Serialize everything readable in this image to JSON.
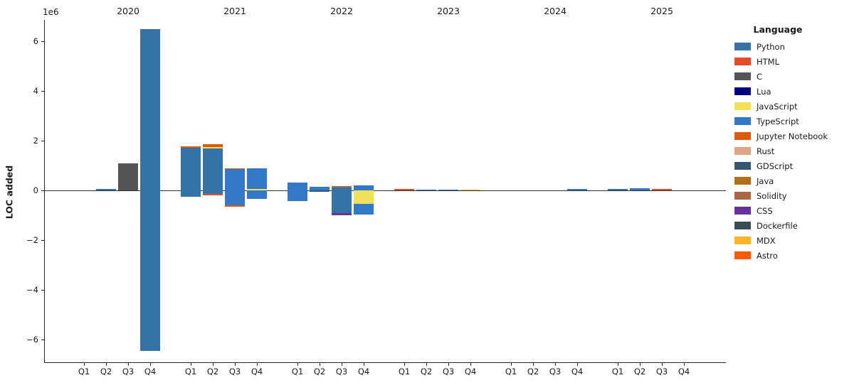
{
  "figure": {
    "ylabel": "LOC added",
    "scale_offset_label": "1e6",
    "legend_title": "Language"
  },
  "languages": [
    {
      "name": "Python",
      "color": "#3572A5"
    },
    {
      "name": "HTML",
      "color": "#e34c26"
    },
    {
      "name": "C",
      "color": "#555555"
    },
    {
      "name": "Lua",
      "color": "#000080"
    },
    {
      "name": "JavaScript",
      "color": "#f1e05a"
    },
    {
      "name": "TypeScript",
      "color": "#3178c6"
    },
    {
      "name": "Jupyter Notebook",
      "color": "#DA5B0B"
    },
    {
      "name": "Rust",
      "color": "#dea584"
    },
    {
      "name": "GDScript",
      "color": "#355570"
    },
    {
      "name": "Java",
      "color": "#b07219"
    },
    {
      "name": "Solidity",
      "color": "#AA6746"
    },
    {
      "name": "CSS",
      "color": "#663399"
    },
    {
      "name": "Dockerfile",
      "color": "#384d54"
    },
    {
      "name": "MDX",
      "color": "#fcb32c"
    },
    {
      "name": "Astro",
      "color": "#ff5a03"
    }
  ],
  "chart_data": {
    "type": "bar",
    "stacked": true,
    "title": "",
    "xlabel": "",
    "ylabel": "LOC added",
    "y_unit_offset": "1e6",
    "ylim": [
      -6900000,
      6900000
    ],
    "grid": false,
    "legend_position": "right",
    "years": [
      "2020",
      "2021",
      "2022",
      "2023",
      "2024",
      "2025"
    ],
    "quarter_labels": [
      "Q1",
      "Q2",
      "Q3",
      "Q4"
    ],
    "yticks": [
      {
        "value": 6000000,
        "label": "6"
      },
      {
        "value": 4000000,
        "label": "4"
      },
      {
        "value": 2000000,
        "label": "2"
      },
      {
        "value": 0,
        "label": "0"
      },
      {
        "value": -2000000,
        "label": "−2"
      },
      {
        "value": -4000000,
        "label": "−4"
      },
      {
        "value": -6000000,
        "label": "−6"
      }
    ],
    "bars": [
      {
        "year": "2020",
        "quarter": "Q2",
        "segments": [
          {
            "language": "Python",
            "loc": 50000
          }
        ]
      },
      {
        "year": "2020",
        "quarter": "Q3",
        "segments": [
          {
            "language": "C",
            "loc": 1090000
          }
        ]
      },
      {
        "year": "2020",
        "quarter": "Q4",
        "segments": [
          {
            "language": "Python",
            "loc": 6500000
          },
          {
            "language": "Python",
            "loc": -6450000
          }
        ]
      },
      {
        "year": "2021",
        "quarter": "Q1",
        "segments": [
          {
            "language": "Python",
            "loc": 1720000
          },
          {
            "language": "Jupyter Notebook",
            "loc": 50000
          },
          {
            "language": "Python",
            "loc": -260000
          }
        ]
      },
      {
        "year": "2021",
        "quarter": "Q2",
        "segments": [
          {
            "language": "Python",
            "loc": 1680000
          },
          {
            "language": "JavaScript",
            "loc": 50000
          },
          {
            "language": "Jupyter Notebook",
            "loc": 130000
          },
          {
            "language": "Python",
            "loc": -140000
          },
          {
            "language": "HTML",
            "loc": -60000
          }
        ]
      },
      {
        "year": "2021",
        "quarter": "Q3",
        "segments": [
          {
            "language": "TypeScript",
            "loc": 860000
          },
          {
            "language": "Jupyter Notebook",
            "loc": 30000
          },
          {
            "language": "TypeScript",
            "loc": -600000
          },
          {
            "language": "Jupyter Notebook",
            "loc": -60000
          }
        ]
      },
      {
        "year": "2021",
        "quarter": "Q4",
        "segments": [
          {
            "language": "JavaScript",
            "loc": 60000
          },
          {
            "language": "TypeScript",
            "loc": 830000
          },
          {
            "language": "TypeScript",
            "loc": -350000
          }
        ]
      },
      {
        "year": "2022",
        "quarter": "Q1",
        "segments": [
          {
            "language": "TypeScript",
            "loc": 320000
          },
          {
            "language": "TypeScript",
            "loc": -430000
          }
        ]
      },
      {
        "year": "2022",
        "quarter": "Q2",
        "segments": [
          {
            "language": "TypeScript",
            "loc": 130000
          },
          {
            "language": "GDScript",
            "loc": -50000
          }
        ]
      },
      {
        "year": "2022",
        "quarter": "Q3",
        "segments": [
          {
            "language": "Python",
            "loc": 120000
          },
          {
            "language": "Solidity",
            "loc": 40000
          },
          {
            "language": "Python",
            "loc": -900000
          },
          {
            "language": "CSS",
            "loc": -100000
          }
        ]
      },
      {
        "year": "2022",
        "quarter": "Q4",
        "segments": [
          {
            "language": "TypeScript",
            "loc": 200000
          },
          {
            "language": "JavaScript",
            "loc": -550000
          },
          {
            "language": "TypeScript",
            "loc": -420000
          }
        ]
      },
      {
        "year": "2023",
        "quarter": "Q1",
        "segments": [
          {
            "language": "HTML",
            "loc": 60000
          }
        ]
      },
      {
        "year": "2023",
        "quarter": "Q2",
        "segments": [
          {
            "language": "TypeScript",
            "loc": 40000
          }
        ]
      },
      {
        "year": "2023",
        "quarter": "Q3",
        "segments": [
          {
            "language": "TypeScript",
            "loc": 40000
          }
        ]
      },
      {
        "year": "2023",
        "quarter": "Q4",
        "segments": [
          {
            "language": "MDX",
            "loc": 30000
          }
        ]
      },
      {
        "year": "2024",
        "quarter": "Q4",
        "segments": [
          {
            "language": "TypeScript",
            "loc": 50000
          }
        ]
      },
      {
        "year": "2025",
        "quarter": "Q1",
        "segments": [
          {
            "language": "Python",
            "loc": 50000
          }
        ]
      },
      {
        "year": "2025",
        "quarter": "Q2",
        "segments": [
          {
            "language": "TypeScript",
            "loc": 100000
          }
        ]
      },
      {
        "year": "2025",
        "quarter": "Q3",
        "segments": [
          {
            "language": "HTML",
            "loc": 50000
          }
        ]
      }
    ]
  }
}
